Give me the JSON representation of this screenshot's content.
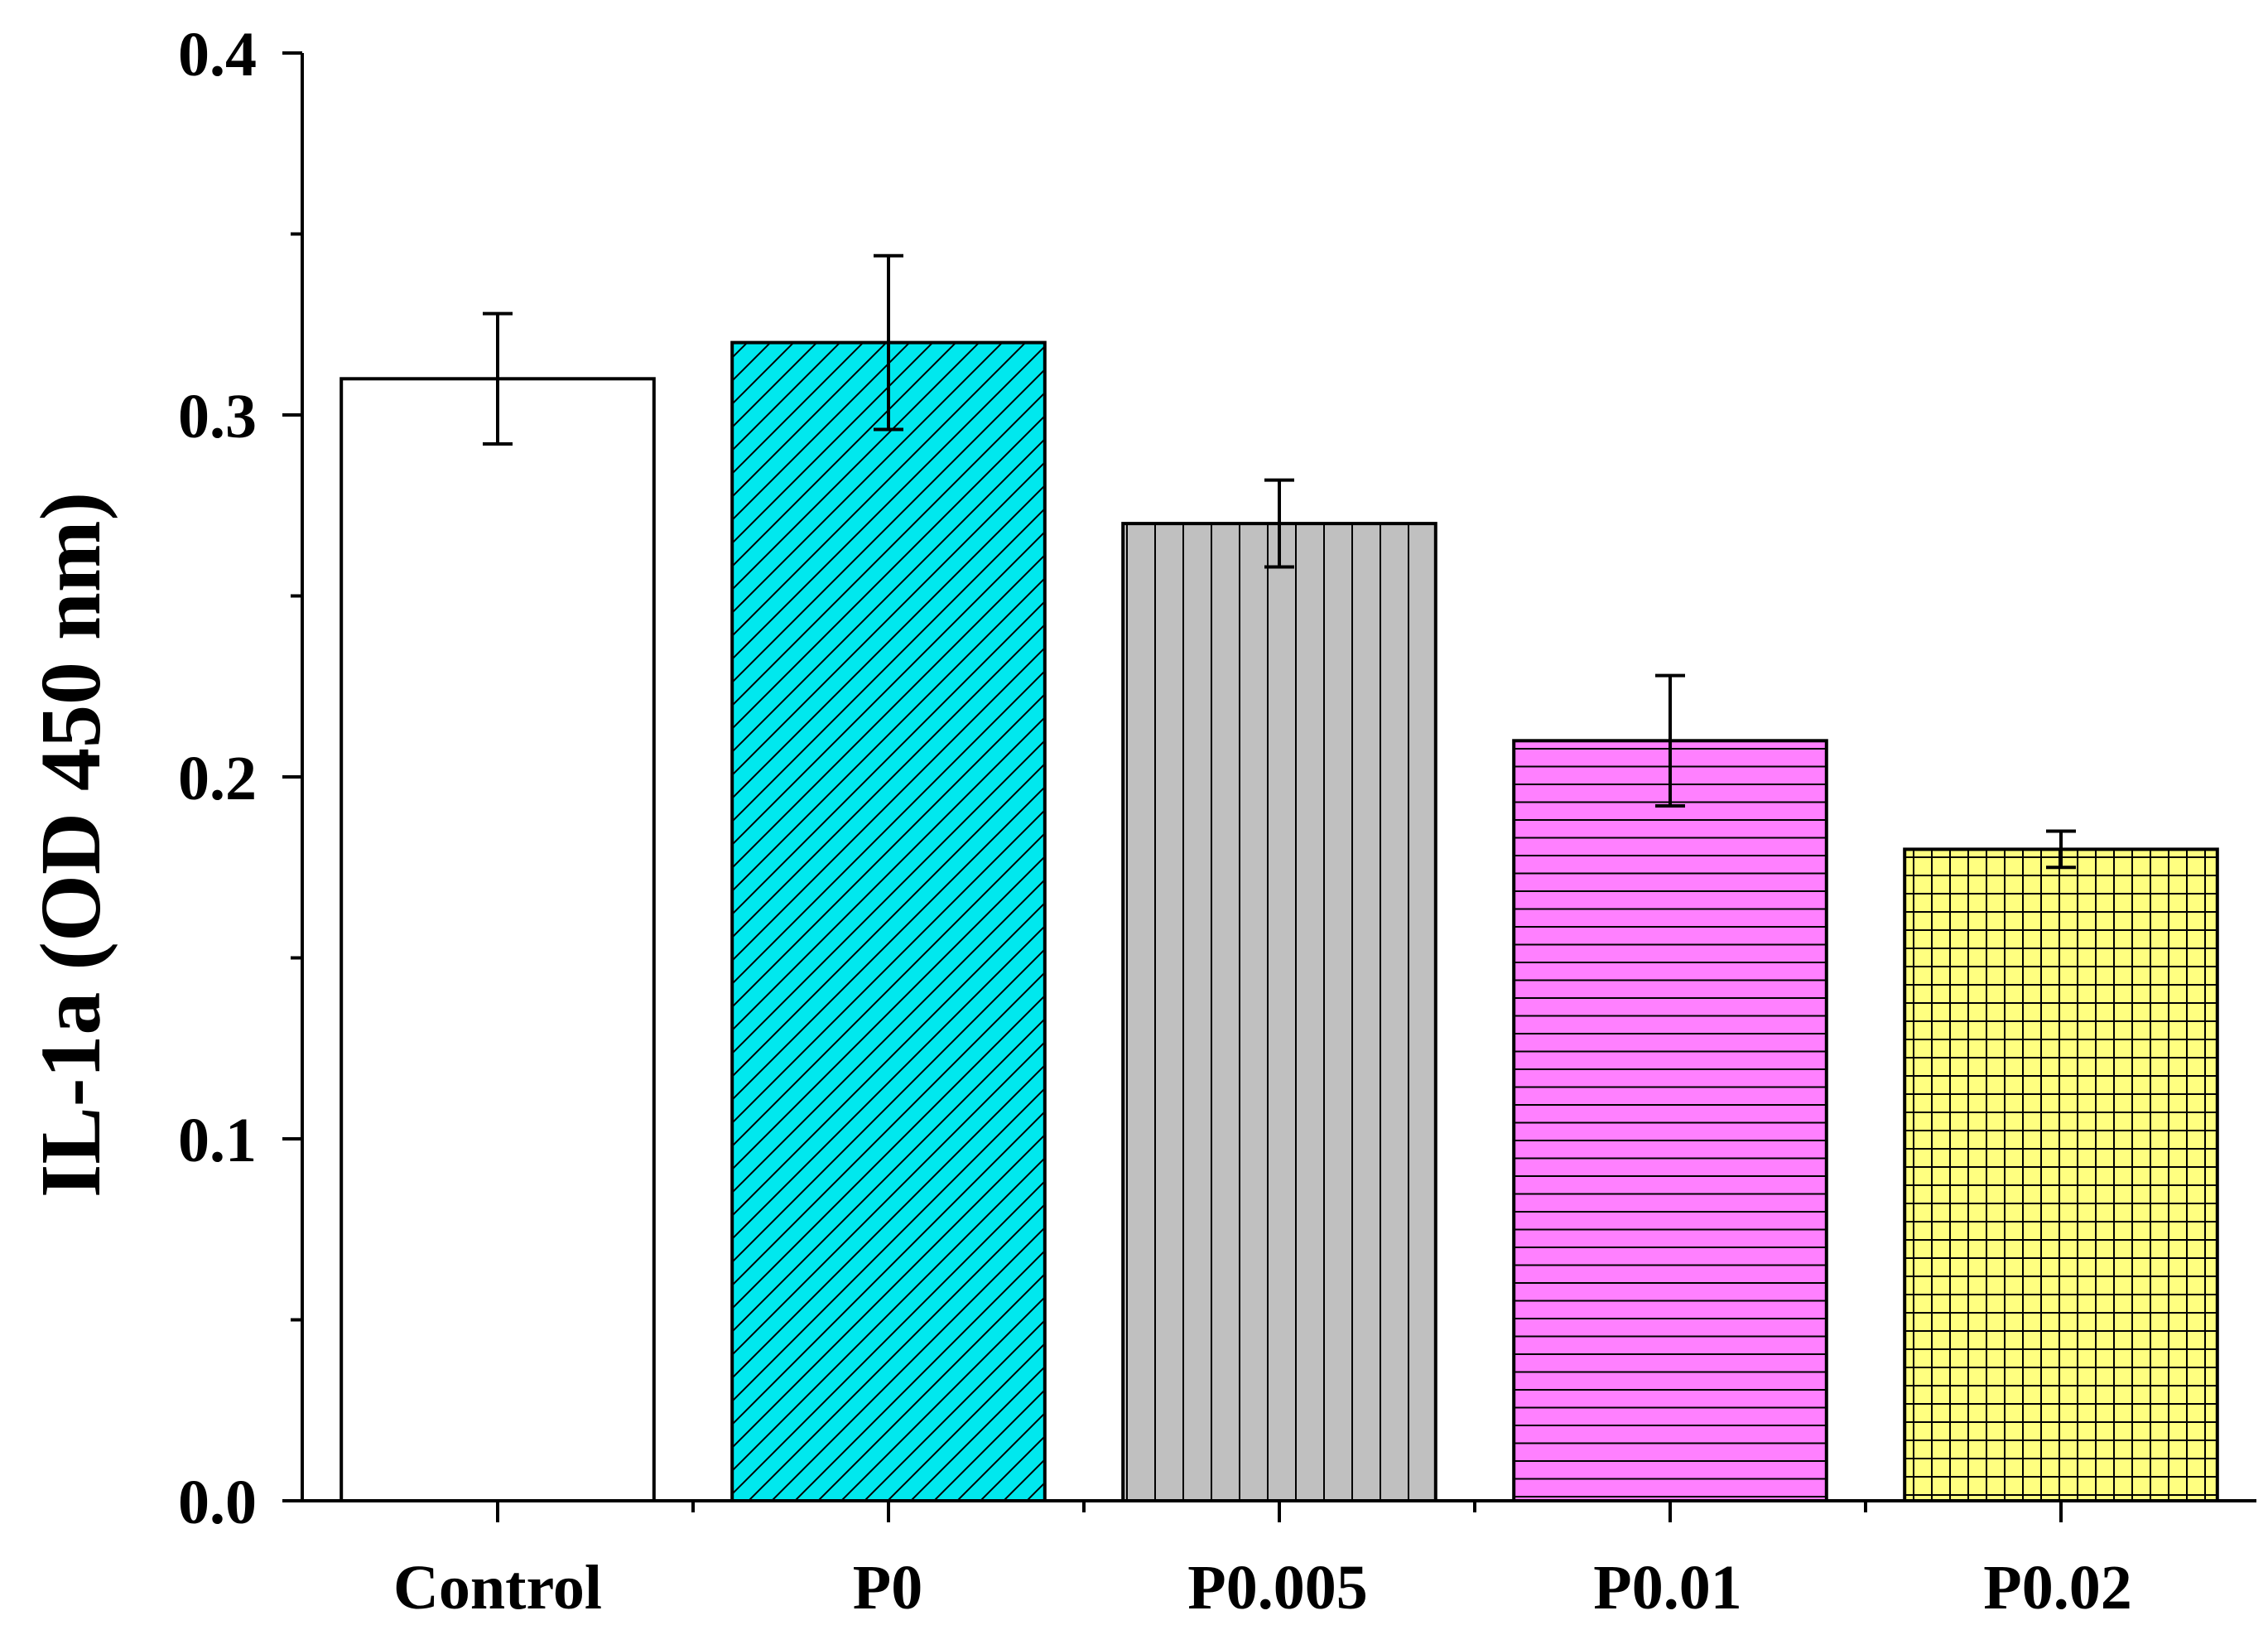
{
  "chart_data": {
    "type": "bar",
    "title": "",
    "xlabel": "",
    "ylabel": "IL-1a (OD 450 nm)",
    "ylim": [
      0,
      0.4
    ],
    "y_ticks": [
      "0.0",
      "0.1",
      "0.2",
      "0.3",
      "0.4"
    ],
    "y_tick_values": [
      0,
      0.1,
      0.2,
      0.3,
      0.4
    ],
    "grid": false,
    "legend": "none",
    "categories": [
      "Control",
      "P0",
      "P0.005",
      "P0.01",
      "P0.02"
    ],
    "values": [
      0.31,
      0.32,
      0.27,
      0.21,
      0.18
    ],
    "errors": [
      0.018,
      0.024,
      0.012,
      0.018,
      0.005
    ],
    "bar_colors": [
      "#ffffff",
      "#00e8ee",
      "#c0c0c0",
      "#ff80ff",
      "#ffff80"
    ],
    "bar_patterns": [
      "none",
      "diagonal",
      "vertical",
      "horizontal",
      "grid"
    ]
  }
}
